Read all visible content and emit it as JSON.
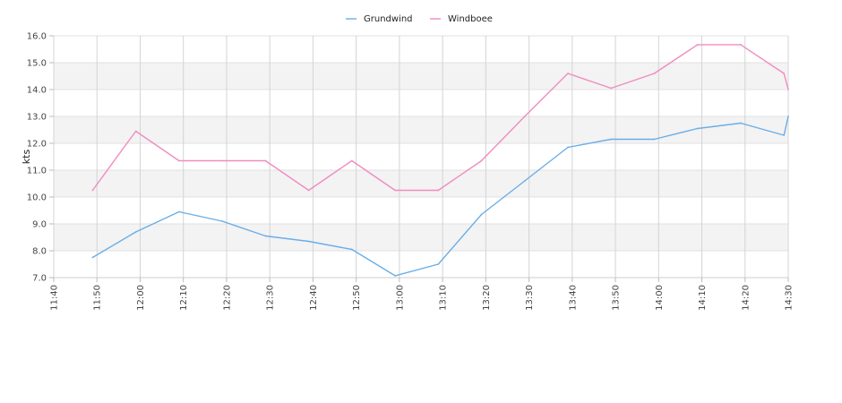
{
  "chart_data": {
    "type": "line",
    "ylabel": "kts",
    "xlabel": "",
    "ylim": [
      7.0,
      16.0
    ],
    "y_ticks": [
      "7.0",
      "8.0",
      "9.0",
      "10.0",
      "11.0",
      "12.0",
      "13.0",
      "14.0",
      "15.0",
      "16.0"
    ],
    "x_ticks": [
      "11:40",
      "11:50",
      "12:00",
      "12:10",
      "12:20",
      "12:30",
      "12:40",
      "12:50",
      "13:00",
      "13:10",
      "13:20",
      "13:30",
      "13:40",
      "13:50",
      "14:00",
      "14:10",
      "14:20",
      "14:30"
    ],
    "x_range": [
      "11:40",
      "14:30"
    ],
    "grid": true,
    "legend_position": "top-center",
    "series": [
      {
        "name": "Grundwind",
        "color": "#6aaee8",
        "points": [
          [
            "11:49",
            7.75
          ],
          [
            "11:59",
            8.7
          ],
          [
            "12:09",
            9.45
          ],
          [
            "12:19",
            9.1
          ],
          [
            "12:29",
            8.55
          ],
          [
            "12:39",
            8.35
          ],
          [
            "12:49",
            8.05
          ],
          [
            "12:59",
            7.07
          ],
          [
            "13:09",
            7.5
          ],
          [
            "13:19",
            9.35
          ],
          [
            "13:29",
            10.6
          ],
          [
            "13:39",
            11.85
          ],
          [
            "13:49",
            12.15
          ],
          [
            "13:59",
            12.15
          ],
          [
            "14:09",
            12.55
          ],
          [
            "14:19",
            12.75
          ],
          [
            "14:29",
            12.3
          ],
          [
            "14:30",
            13.0
          ]
        ]
      },
      {
        "name": "Windboee",
        "color": "#f08cc0",
        "points": [
          [
            "11:49",
            10.25
          ],
          [
            "11:59",
            12.45
          ],
          [
            "12:09",
            11.35
          ],
          [
            "12:19",
            11.35
          ],
          [
            "12:29",
            11.35
          ],
          [
            "12:39",
            10.25
          ],
          [
            "12:49",
            11.35
          ],
          [
            "12:59",
            10.25
          ],
          [
            "13:09",
            10.25
          ],
          [
            "13:19",
            11.35
          ],
          [
            "13:29",
            13.0
          ],
          [
            "13:39",
            14.6
          ],
          [
            "13:49",
            14.05
          ],
          [
            "13:59",
            14.6
          ],
          [
            "14:09",
            15.67
          ],
          [
            "14:19",
            15.67
          ],
          [
            "14:29",
            14.6
          ],
          [
            "14:30",
            14.0
          ]
        ]
      }
    ]
  }
}
